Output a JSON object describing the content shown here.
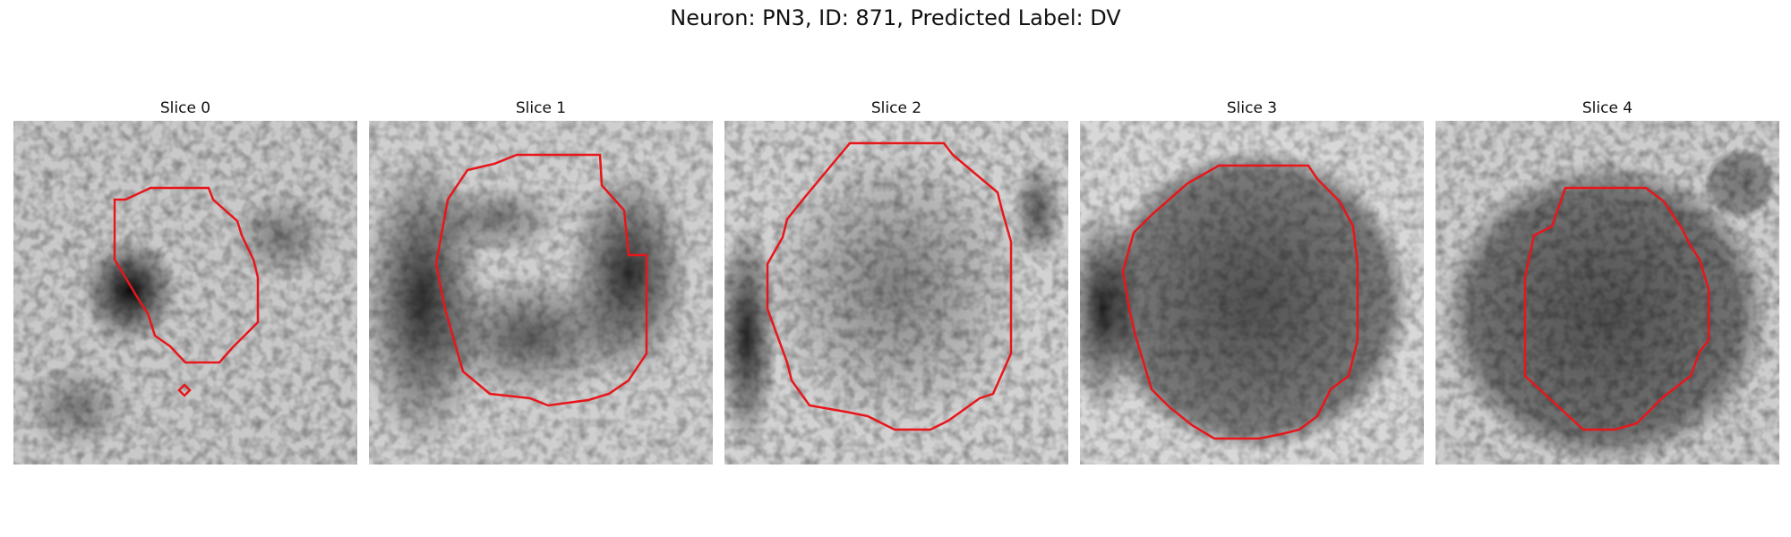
{
  "figure": {
    "title": "Neuron: PN3, ID: 871, Predicted Label: DV"
  },
  "panels": [
    {
      "title": "Slice 0",
      "overlay_color": "#e8161b"
    },
    {
      "title": "Slice 1",
      "overlay_color": "#e8161b"
    },
    {
      "title": "Slice 2",
      "overlay_color": "#e8161b"
    },
    {
      "title": "Slice 3",
      "overlay_color": "#e8161b"
    },
    {
      "title": "Slice 4",
      "overlay_color": "#e8161b"
    }
  ]
}
